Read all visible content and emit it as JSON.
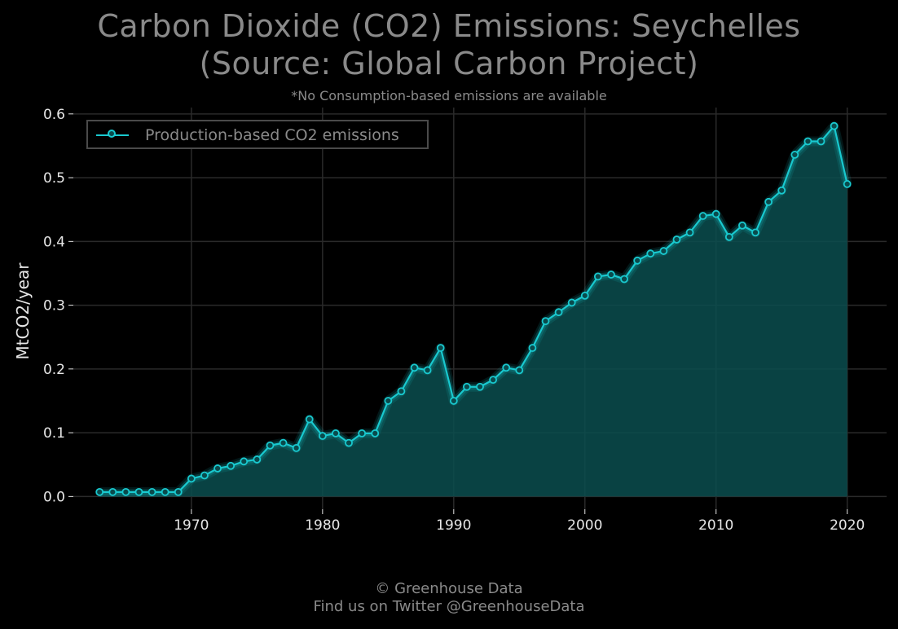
{
  "title_line1": "Carbon Dioxide (CO2) Emissions: Seychelles",
  "title_line2": "(Source: Global Carbon Project)",
  "subtitle": "*No Consumption-based emissions are available",
  "footer_line1": "© Greenhouse Data",
  "footer_line2": "Find us on Twitter @GreenhouseData",
  "colors": {
    "background": "#000000",
    "series": "#19c9cf",
    "fill": "#0b4d4f",
    "grid": "#2a2a2a",
    "text_muted": "#8a8a8a",
    "text": "#e6e6e6"
  },
  "chart_data": {
    "type": "area",
    "title": "Carbon Dioxide (CO2) Emissions: Seychelles (Source: Global Carbon Project)",
    "subtitle": "*No Consumption-based emissions are available",
    "xlabel": "",
    "ylabel": "MtCO2/year",
    "xlim": [
      1961,
      2023
    ],
    "ylim": [
      -0.02,
      0.61
    ],
    "xticks": [
      1970,
      1980,
      1990,
      2000,
      2010,
      2020
    ],
    "yticks": [
      0.0,
      0.1,
      0.2,
      0.3,
      0.4,
      0.5,
      0.6
    ],
    "grid": true,
    "legend_position": "top-left",
    "series": [
      {
        "name": "Production-based CO2 emissions",
        "x": [
          1963,
          1964,
          1965,
          1966,
          1967,
          1968,
          1969,
          1970,
          1971,
          1972,
          1973,
          1974,
          1975,
          1976,
          1977,
          1978,
          1979,
          1980,
          1981,
          1982,
          1983,
          1984,
          1985,
          1986,
          1987,
          1988,
          1989,
          1990,
          1991,
          1992,
          1993,
          1994,
          1995,
          1996,
          1997,
          1998,
          1999,
          2000,
          2001,
          2002,
          2003,
          2004,
          2005,
          2006,
          2007,
          2008,
          2009,
          2010,
          2011,
          2012,
          2013,
          2014,
          2015,
          2016,
          2017,
          2018,
          2019,
          2020
        ],
        "values": [
          0.007,
          0.007,
          0.007,
          0.007,
          0.007,
          0.007,
          0.007,
          0.028,
          0.033,
          0.044,
          0.048,
          0.055,
          0.058,
          0.08,
          0.084,
          0.076,
          0.121,
          0.095,
          0.099,
          0.084,
          0.099,
          0.099,
          0.15,
          0.165,
          0.202,
          0.198,
          0.233,
          0.15,
          0.172,
          0.172,
          0.183,
          0.202,
          0.198,
          0.233,
          0.275,
          0.289,
          0.304,
          0.315,
          0.345,
          0.348,
          0.341,
          0.37,
          0.381,
          0.385,
          0.403,
          0.414,
          0.44,
          0.443,
          0.407,
          0.425,
          0.414,
          0.462,
          0.48,
          0.536,
          0.557,
          0.557,
          0.581,
          0.49
        ]
      }
    ]
  }
}
